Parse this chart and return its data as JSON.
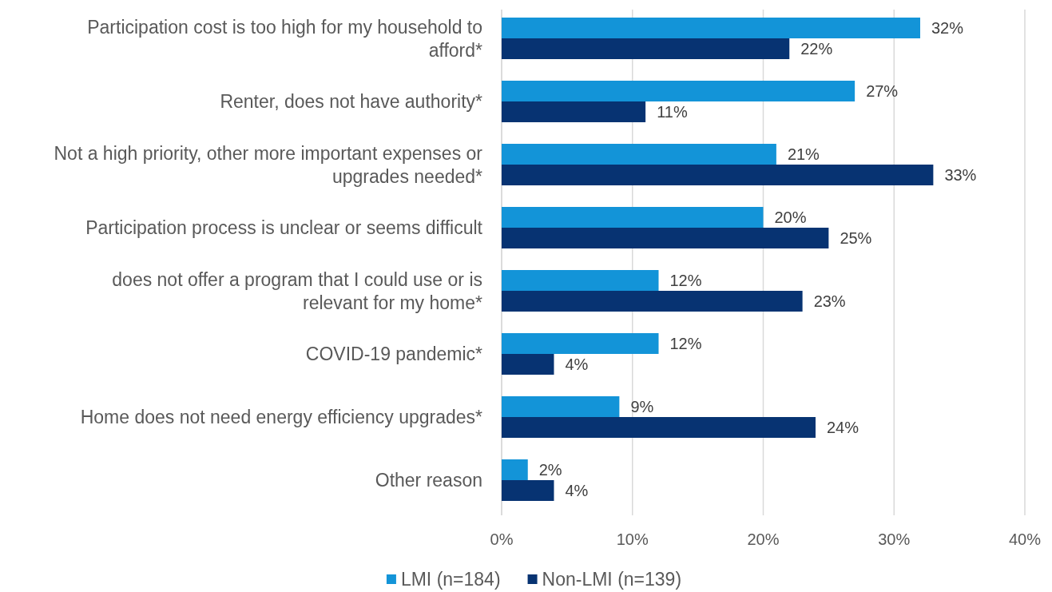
{
  "chart_data": {
    "type": "bar",
    "orientation": "horizontal",
    "categories": [
      "Participation cost is too high for my household to afford*",
      "Renter, does not have authority*",
      "Not a high priority, other more important expenses or upgrades needed*",
      "Participation process is unclear or seems difficult",
      "does not offer a program that I could use or is relevant for my home*",
      "COVID-19 pandemic*",
      "Home does not need energy efficiency upgrades*",
      "Other reason"
    ],
    "series": [
      {
        "name": "LMI (n=184)",
        "color": "#1394d8",
        "values": [
          32,
          27,
          21,
          20,
          12,
          12,
          9,
          2
        ],
        "value_labels": [
          "32%",
          "27%",
          "21%",
          "20%",
          "12%",
          "12%",
          "9%",
          "2%"
        ]
      },
      {
        "name": "Non-LMI (n=139)",
        "color": "#073372",
        "values": [
          22,
          11,
          33,
          25,
          23,
          4,
          24,
          4
        ],
        "value_labels": [
          "22%",
          "11%",
          "33%",
          "25%",
          "23%",
          "4%",
          "24%",
          "4%"
        ]
      }
    ],
    "xlim": [
      0,
      40
    ],
    "xticks": [
      {
        "value": 0,
        "label": "0%"
      },
      {
        "value": 10,
        "label": "10%"
      },
      {
        "value": 20,
        "label": "20%"
      },
      {
        "value": 30,
        "label": "30%"
      },
      {
        "value": 40,
        "label": "40%"
      }
    ],
    "grid": "x",
    "legend": "bottom"
  }
}
